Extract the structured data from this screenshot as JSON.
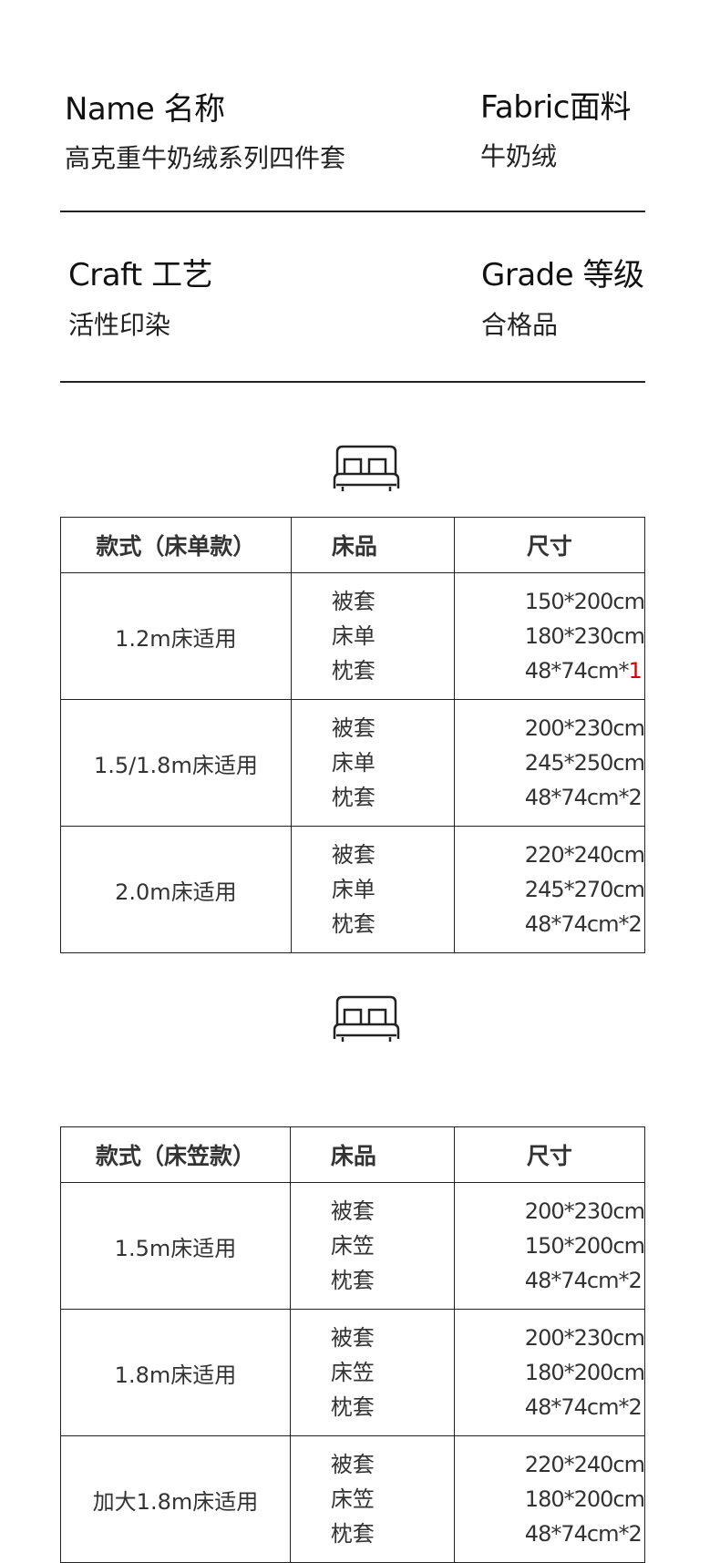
{
  "info": [
    {
      "label": "Name 名称",
      "value": "高克重牛奶绒系列四件套"
    },
    {
      "label": "Fabric面料",
      "value": "牛奶绒"
    },
    {
      "label": "Craft 工艺",
      "value": "活性印染"
    },
    {
      "label": "Grade 等级",
      "value": "合格品"
    }
  ],
  "icons": {
    "section": "bed-icon"
  },
  "colors": {
    "text": "#333333",
    "highlight": "#d40000"
  },
  "table1": {
    "headers": [
      "款式（床单款）",
      "床品",
      "尺寸"
    ],
    "rows": [
      {
        "size": "1.2m床适用",
        "items": [
          "被套",
          "床单",
          "枕套"
        ],
        "dims": [
          "150*200cm",
          "180*230cm",
          "48*74cm*"
        ],
        "pillow_count": "1"
      },
      {
        "size": "1.5/1.8m床适用",
        "items": [
          "被套",
          "床单",
          "枕套"
        ],
        "dims": [
          "200*230cm",
          "245*250cm",
          "48*74cm*2"
        ]
      },
      {
        "size": "2.0m床适用",
        "items": [
          "被套",
          "床单",
          "枕套"
        ],
        "dims": [
          "220*240cm",
          "245*270cm",
          "48*74cm*2"
        ]
      }
    ]
  },
  "table2": {
    "headers": [
      "款式（床笠款）",
      "床品",
      "尺寸"
    ],
    "rows": [
      {
        "size": "1.5m床适用",
        "items": [
          "被套",
          "床笠",
          "枕套"
        ],
        "dims": [
          "200*230cm",
          "150*200cm",
          "48*74cm*2"
        ]
      },
      {
        "size": "1.8m床适用",
        "items": [
          "被套",
          "床笠",
          "枕套"
        ],
        "dims": [
          "200*230cm",
          "180*200cm",
          "48*74cm*2"
        ]
      },
      {
        "size": "加大1.8m床适用",
        "items": [
          "被套",
          "床笠",
          "枕套"
        ],
        "dims": [
          "220*240cm",
          "180*200cm",
          "48*74cm*2"
        ]
      }
    ]
  }
}
